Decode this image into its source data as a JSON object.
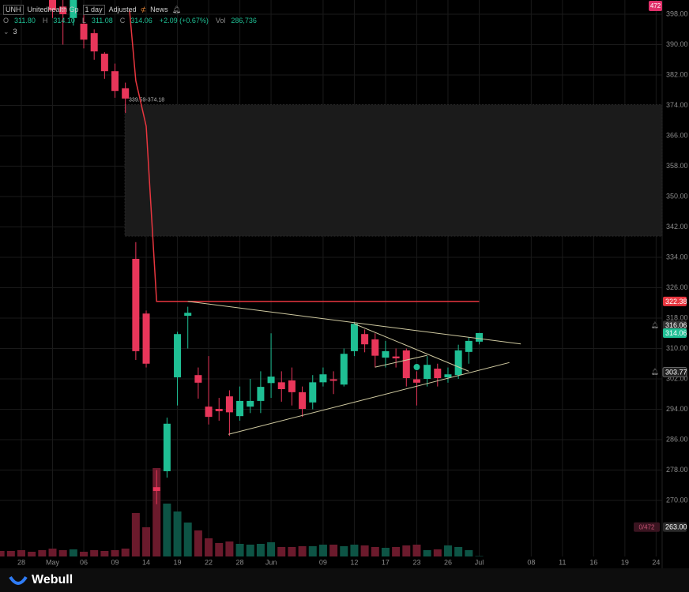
{
  "header": {
    "symbol": "UNH",
    "name": "Unitedhealth Gp",
    "interval": "1 day",
    "adjust": "Adjusted",
    "news": "News",
    "quote": [
      {
        "key": "O",
        "value": "311.80"
      },
      {
        "key": "H",
        "value": "314.10"
      },
      {
        "key": "L",
        "value": "311.08"
      },
      {
        "key": "C",
        "value": "314.06"
      }
    ],
    "change": "+2.09 (+0.67%)",
    "vol_key": "Vol",
    "volume": "286,736",
    "indicator_count": "3"
  },
  "footer": {
    "brand": "Webull"
  },
  "chart_data": {
    "type": "candlestick",
    "x": [
      -2,
      -1,
      0,
      1,
      2,
      3,
      4,
      5,
      6,
      7,
      8,
      9,
      10,
      11,
      12,
      13,
      14,
      15,
      16,
      17,
      18,
      19,
      20,
      21,
      22,
      23,
      24,
      25,
      26,
      27,
      28,
      29,
      30,
      31,
      32,
      33,
      34,
      35,
      36,
      37,
      38,
      39,
      40,
      41,
      42,
      43,
      44
    ],
    "open": [
      null,
      null,
      null,
      null,
      null,
      404,
      400,
      397,
      395.5,
      393,
      387.6,
      383,
      378.5,
      333.6,
      319.2,
      273.5,
      277.7,
      302.4,
      318.6,
      303,
      294.7,
      294.1,
      297.4,
      292.2,
      294.7,
      296.2,
      300.9,
      301.1,
      301.6,
      298.5,
      295.8,
      301.1,
      301.9,
      300.5,
      309.3,
      313.8,
      312.4,
      307.6,
      307.9,
      309.5,
      301.9,
      302,
      304.7,
      302.4,
      303,
      309.1,
      311.8
    ],
    "high": [
      null,
      null,
      null,
      null,
      null,
      406,
      402,
      406,
      398,
      394,
      388,
      385,
      380,
      338,
      320,
      278,
      291.8,
      314.4,
      321,
      305,
      308,
      297,
      299,
      300,
      302,
      304,
      314,
      304,
      305,
      300,
      303,
      305,
      304,
      310,
      317,
      315,
      314,
      312,
      310,
      310,
      304,
      308,
      306,
      305,
      311,
      313,
      314.1
    ],
    "low": [
      null,
      null,
      null,
      null,
      null,
      397,
      390,
      395,
      389,
      386,
      381,
      376,
      372,
      307,
      305,
      269,
      276,
      295,
      310,
      296.8,
      290,
      291,
      287,
      291,
      293,
      293,
      297,
      296,
      295,
      292,
      294,
      300,
      298,
      300,
      308,
      309,
      305,
      305,
      305,
      300,
      295,
      300,
      300,
      301,
      302,
      306,
      311.08
    ],
    "close": [
      null,
      null,
      null,
      null,
      null,
      399,
      398,
      403,
      391.3,
      388.2,
      383,
      377.8,
      375.8,
      309.3,
      306,
      272.5,
      290.2,
      313.8,
      319.4,
      301,
      292,
      293.5,
      293.2,
      296.2,
      296.2,
      299.9,
      302.6,
      299.3,
      298.5,
      294.1,
      301.1,
      303.2,
      301.5,
      308.6,
      316.5,
      311.1,
      308.1,
      309.3,
      307.4,
      302.2,
      301,
      305.7,
      302.2,
      303.2,
      309.5,
      312,
      314.06
    ],
    "volume": [
      3500000,
      3500000,
      4000000,
      3000000,
      4000000,
      5000000,
      4000000,
      4500000,
      3000000,
      4000000,
      3500000,
      4000000,
      5000000,
      27500000,
      18500000,
      56000000,
      33500000,
      28500000,
      21500000,
      16500000,
      11500000,
      8500000,
      9500000,
      8000000,
      7500000,
      8000000,
      9000000,
      6000000,
      6000000,
      6500000,
      6500000,
      7500000,
      7500000,
      6500000,
      7500000,
      7000000,
      6000000,
      5500000,
      6000000,
      7000000,
      7500000,
      4000000,
      4500000,
      7000000,
      6000000,
      4000000,
      286736
    ],
    "up_color": "#1fbf94",
    "down_color": "#e8365a",
    "up_volume_color": "#0d5445",
    "down_volume_color": "#6b1a2c",
    "xlim": [
      -2.05,
      61.58
    ],
    "ylim": [
      255.25,
      401.74
    ],
    "volume_lim": [
      0,
      352500000
    ],
    "xticks": [
      {
        "value": 0,
        "label": "28"
      },
      {
        "value": 3,
        "label": "May"
      },
      {
        "value": 6,
        "label": "06"
      },
      {
        "value": 9,
        "label": "09"
      },
      {
        "value": 12,
        "label": "14"
      },
      {
        "value": 15,
        "label": "19"
      },
      {
        "value": 18,
        "label": "22"
      },
      {
        "value": 21,
        "label": "28"
      },
      {
        "value": 24,
        "label": "Jun"
      },
      {
        "value": 29,
        "label": "09"
      },
      {
        "value": 32,
        "label": "12"
      },
      {
        "value": 35,
        "label": "17"
      },
      {
        "value": 38,
        "label": "23"
      },
      {
        "value": 41,
        "label": "26"
      },
      {
        "value": 44,
        "label": "Jul"
      },
      {
        "value": 49,
        "label": "08"
      },
      {
        "value": 52,
        "label": "11"
      },
      {
        "value": 55,
        "label": "16"
      },
      {
        "value": 58,
        "label": "19"
      },
      {
        "value": 61,
        "label": "24"
      }
    ],
    "yticks": [
      {
        "value": 270,
        "label": "270.00"
      },
      {
        "value": 278,
        "label": "278.00"
      },
      {
        "value": 286,
        "label": "286.00"
      },
      {
        "value": 294,
        "label": "294.00"
      },
      {
        "value": 302,
        "label": "302.00"
      },
      {
        "value": 310,
        "label": "310.00"
      },
      {
        "value": 318,
        "label": "318.00"
      },
      {
        "value": 326,
        "label": "326.00"
      },
      {
        "value": 334,
        "label": "334.00"
      },
      {
        "value": 342,
        "label": "342.00"
      },
      {
        "value": 350,
        "label": "350.00"
      },
      {
        "value": 358,
        "label": "358.00"
      },
      {
        "value": 366,
        "label": "366.00"
      },
      {
        "value": 374,
        "label": "374.00"
      },
      {
        "value": 382,
        "label": "382.00"
      },
      {
        "value": 390,
        "label": "390.00"
      },
      {
        "value": 398,
        "label": "398.00"
      }
    ],
    "grid": true,
    "zone": {
      "low": 339.59,
      "high": 374.18,
      "x_start": 9.95,
      "label": "339.59-374.18"
    },
    "alert_line": {
      "color": "#e8363f",
      "x": [
        10.4,
        11,
        12,
        13,
        44
      ],
      "y": [
        399,
        380.5,
        368.5,
        322.38,
        322.38
      ]
    },
    "drawings": [
      {
        "color": "#cfc9a0",
        "x": [
          16,
          48
        ],
        "y": [
          322.4,
          311.2
        ]
      },
      {
        "color": "#cfc9a0",
        "x": [
          19.9,
          46.9
        ],
        "y": [
          287.4,
          306.3
        ]
      },
      {
        "color": "#cfc9a0",
        "x": [
          32,
          43
        ],
        "y": [
          316.5,
          304
        ]
      },
      {
        "color": "#cfc9a0",
        "x": [
          34,
          39
        ],
        "y": [
          305.1,
          308.2
        ]
      }
    ],
    "price_badges": [
      {
        "value": 322.38,
        "color": "#e8363f",
        "bell": false
      },
      {
        "value": 316.06,
        "color": "#333333",
        "bell": true
      },
      {
        "value": 314.06,
        "color": "#1fbf94",
        "bell": false
      },
      {
        "value": 303.77,
        "color": "#222222",
        "bell": true
      },
      {
        "value": 263,
        "label": "263.00",
        "color": "#2a2a2a",
        "bell": false
      }
    ],
    "alerts_count": "472",
    "alerts_ratio": "0/472"
  }
}
